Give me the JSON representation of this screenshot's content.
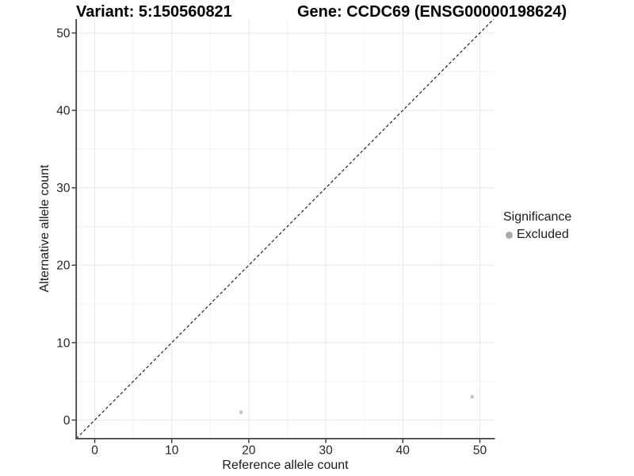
{
  "page": {
    "background": "#ffffff"
  },
  "header": {
    "variant_title": "Variant: 5:150560821",
    "gene_title": "Gene: CCDC69 (ENSG00000198624)"
  },
  "chart_data": {
    "type": "scatter",
    "title": "Variant: 5:150560821 | Gene: CCDC69 (ENSG00000198624)",
    "xlabel": "Reference allele count",
    "ylabel": "Alternative allele count",
    "xlim": [
      -2.4,
      51.8
    ],
    "ylim": [
      -2.4,
      51.8
    ],
    "x_ticks": [
      0,
      10,
      20,
      30,
      40,
      50
    ],
    "y_ticks": [
      0,
      10,
      20,
      30,
      40,
      50
    ],
    "minor_ticks": [
      5,
      15,
      25,
      35,
      45
    ],
    "grid": {
      "show": true,
      "major_color": "#e8e8e8",
      "minor_color": "#f3f3f3"
    },
    "axis_color": "#424242",
    "tick_color": "#333333",
    "tick_label_color": "#262626",
    "reference_line": {
      "style": "dashed",
      "slope": 1,
      "intercept": 0,
      "color": "#1a1a1a",
      "dash": "3.8 2.8"
    },
    "series": [
      {
        "name": "Excluded",
        "color": "#c6c6c6",
        "point_radius": 2.4,
        "points": [
          {
            "x": 19,
            "y": 1
          },
          {
            "x": 49,
            "y": 3
          }
        ]
      }
    ],
    "legend": {
      "title": "Significance",
      "position": "right",
      "entries": [
        {
          "label": "Excluded",
          "color": "#a9a9a9"
        }
      ]
    }
  }
}
